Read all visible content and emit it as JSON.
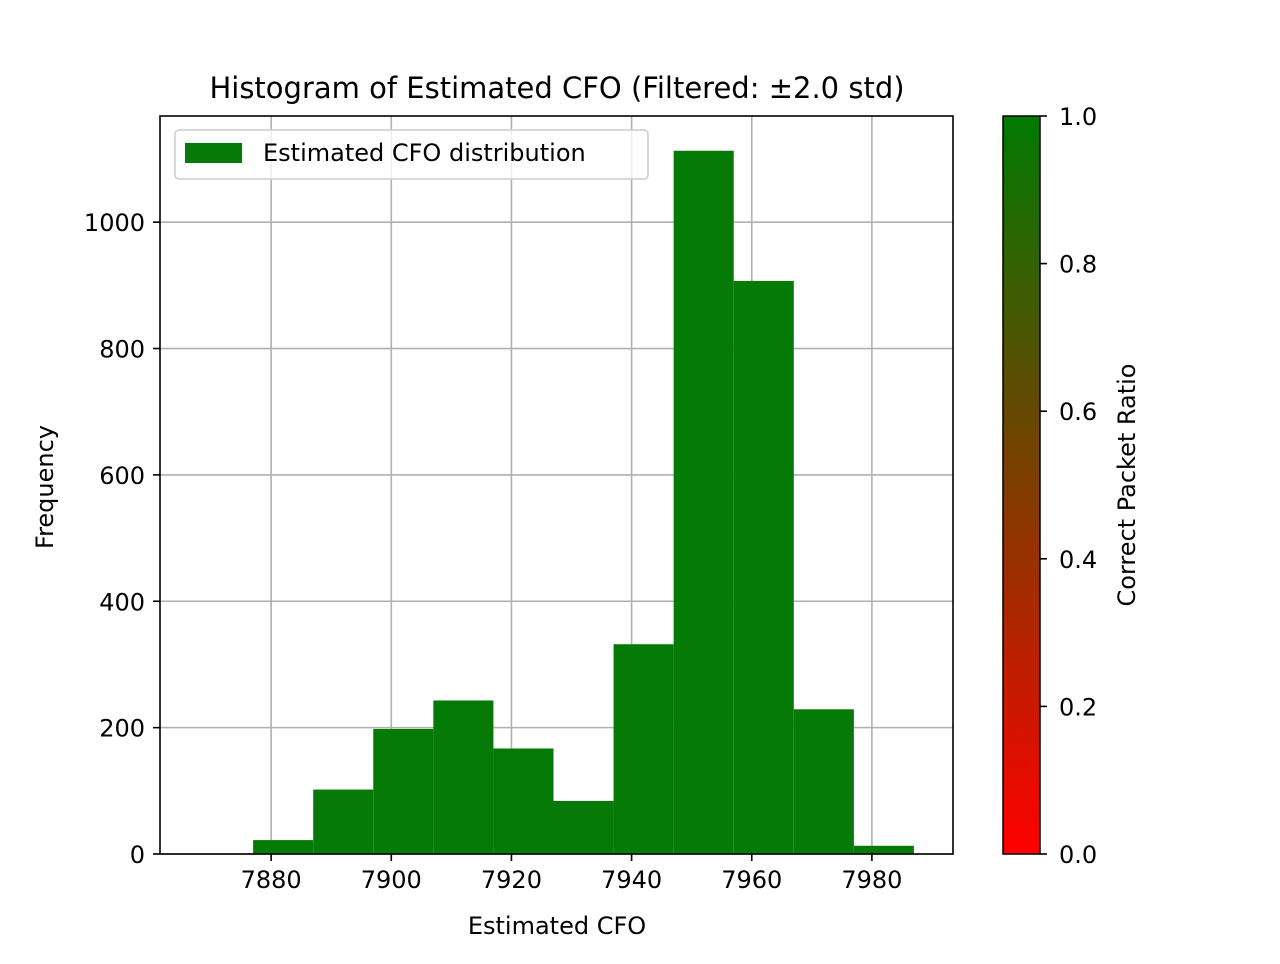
{
  "chart_data": {
    "type": "bar",
    "title": "Histogram of Estimated CFO (Filtered: ±2.0 std)",
    "xlabel": "Estimated CFO",
    "ylabel": "Frequency",
    "xlim": [
      7861.5,
      7993.5
    ],
    "ylim": [
      0,
      1168
    ],
    "xticks": [
      7880,
      7900,
      7920,
      7940,
      7960,
      7980
    ],
    "yticks": [
      0,
      200,
      400,
      600,
      800,
      1000
    ],
    "grid": true,
    "legend": {
      "placement": "upper left",
      "entries": [
        "Estimated CFO distribution"
      ]
    },
    "bar_color": "#067a06",
    "bins": [
      {
        "x0": 7877.0,
        "x1": 7887.0,
        "value": 22
      },
      {
        "x0": 7887.0,
        "x1": 7897.0,
        "value": 102
      },
      {
        "x0": 7897.0,
        "x1": 7907.0,
        "value": 198
      },
      {
        "x0": 7907.0,
        "x1": 7917.0,
        "value": 243
      },
      {
        "x0": 7917.0,
        "x1": 7927.0,
        "value": 167
      },
      {
        "x0": 7927.0,
        "x1": 7937.0,
        "value": 84
      },
      {
        "x0": 7937.0,
        "x1": 7947.0,
        "value": 332
      },
      {
        "x0": 7947.0,
        "x1": 7957.0,
        "value": 1113
      },
      {
        "x0": 7957.0,
        "x1": 7967.0,
        "value": 907
      },
      {
        "x0": 7967.0,
        "x1": 7977.0,
        "value": 229
      },
      {
        "x0": 7977.0,
        "x1": 7987.0,
        "value": 13
      }
    ],
    "colorbar": {
      "label": "Correct Packet Ratio",
      "range": [
        0,
        1
      ],
      "ticks": [
        "0.0",
        "0.2",
        "0.4",
        "0.6",
        "0.8",
        "1.0"
      ],
      "color_low": "#ff0000",
      "color_high": "#007a00"
    }
  }
}
